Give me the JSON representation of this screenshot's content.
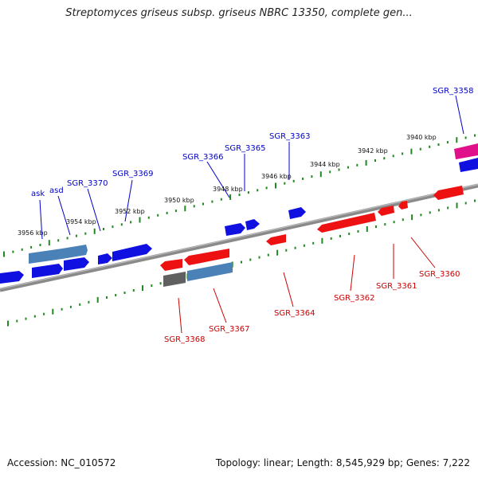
{
  "header": {
    "title": "Streptomyces griseus subsp. griseus NBRC 13350, complete gen..."
  },
  "footer": {
    "accession": "Accession: NC_010572",
    "info": "Topology: linear; Length: 8,545,929 bp; Genes: 7,222"
  },
  "colors": {
    "forward_gene": "#1010e0",
    "reverse_gene": "#ee1111",
    "highlight_gene": "#4a82b8",
    "pseudo_gene": "#606060",
    "rna_gene": "#e0108a",
    "backbone": "#8a8a8a",
    "ticks": "#228822"
  },
  "ruler_labels": [
    "3956 kbp",
    "3954 kbp",
    "3952 kbp",
    "3950 kbp",
    "3948 kbp",
    "3946 kbp",
    "3944 kbp",
    "3942 kbp",
    "3940 kbp"
  ],
  "forward_gene_labels": [
    "ask",
    "asd",
    "SGR_3370",
    "SGR_3369",
    "SGR_3366",
    "SGR_3365",
    "SGR_3363",
    "SGR_3358"
  ],
  "reverse_gene_labels": [
    "SGR_3368",
    "SGR_3367",
    "SGR_3364",
    "SGR_3362",
    "SGR_3361",
    "SGR_3360"
  ]
}
